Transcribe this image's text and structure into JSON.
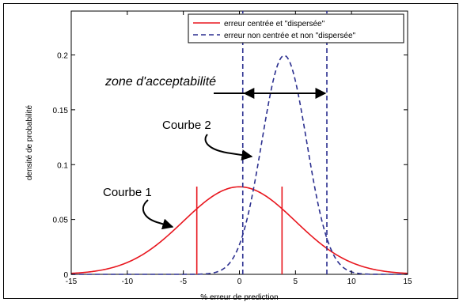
{
  "chart_data": {
    "type": "line",
    "title": "",
    "xlabel": "% erreur de prediction",
    "ylabel": "densité de probabilité",
    "xlim": [
      -15,
      15
    ],
    "ylim": [
      0,
      0.24
    ],
    "xticks": [
      -15,
      -10,
      -5,
      0,
      5,
      10,
      15
    ],
    "yticks": [
      0,
      0.05,
      0.1,
      0.15,
      0.2
    ],
    "xtick_labels": [
      "-15",
      "-10",
      "-5",
      "0",
      "5",
      "10",
      "15"
    ],
    "ytick_labels": [
      "0",
      "0.05",
      "0.1",
      "0.15",
      "0.2"
    ],
    "grid": false,
    "legend_position": "top-right",
    "series": [
      {
        "name": "erreur centrée et \"dispersée\"",
        "color": "#e8161e",
        "line_style": "solid",
        "distribution": "normal",
        "mean": 0,
        "std": 5,
        "peak": 0.0798
      },
      {
        "name": "erreur non centrée et non \"dispersée\"",
        "color": "#2b2f8f",
        "line_style": "dashed",
        "distribution": "normal",
        "mean": 4,
        "std": 2,
        "peak": 0.1995
      }
    ],
    "reference_lines": [
      {
        "x": -3.8,
        "color": "#e8161e",
        "style": "solid",
        "y_top": 0.08
      },
      {
        "x": 3.8,
        "color": "#e8161e",
        "style": "solid",
        "y_top": 0.08
      },
      {
        "x": 0.3,
        "color": "#2b2f8f",
        "style": "dashed",
        "y_top": 0.24
      },
      {
        "x": 7.8,
        "color": "#2b2f8f",
        "style": "dashed",
        "y_top": 0.24
      }
    ],
    "annotations": {
      "zone_label": "zone d'acceptabilité",
      "zone_range": [
        0.3,
        7.8
      ],
      "curve1_label": "Courbe 1",
      "curve2_label": "Courbe 2"
    }
  }
}
